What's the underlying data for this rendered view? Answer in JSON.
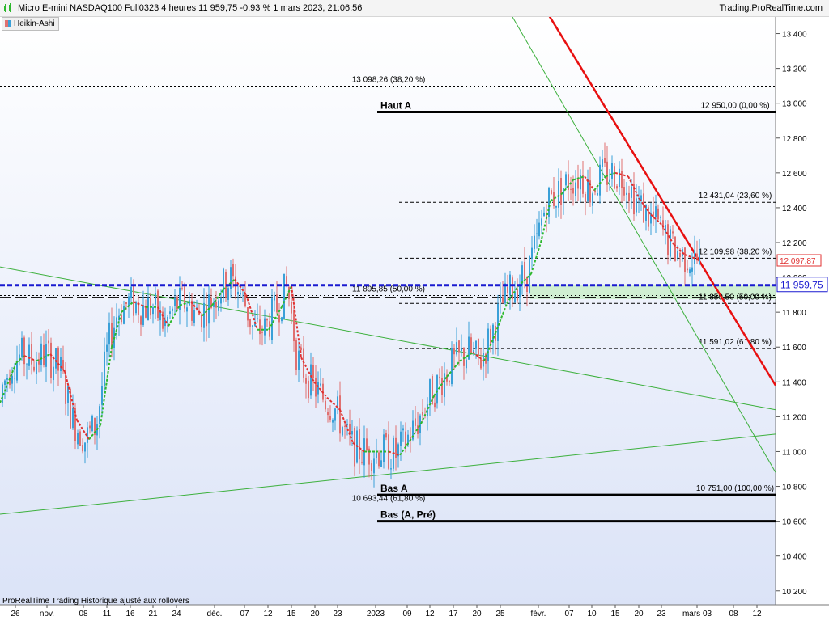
{
  "header": {
    "title": "Micro E-mini NASDAQ100 Full0323 4 heures 11 959,75 -0,93 % 1 mars 2023, 21:06:56",
    "brand": "Trading.ProRealTime.com"
  },
  "indicator": {
    "label": "Heikin-Ashi",
    "icon": "heikin-ashi-icon"
  },
  "footer": {
    "note": "ProRealTime Trading  Historique ajusté aux rollovers"
  },
  "colors": {
    "bull": "#3aa0d8",
    "bear": "#e07070",
    "ma_up": "#2db82d",
    "ma_down": "#e03030",
    "trend": "#3cb03c",
    "red_line": "#e81010",
    "blue_level": "#1a1ad0",
    "zone": "#c8eec8",
    "bg_top": "#ffffff",
    "bg_bottom": "#dbe3f7"
  },
  "chart_data": {
    "type": "candlestick",
    "ylim": [
      10120,
      13500
    ],
    "y_ticks": [
      10200,
      10400,
      10600,
      10800,
      11000,
      11200,
      11400,
      11600,
      11800,
      12000,
      12200,
      12400,
      12600,
      12800,
      13000,
      13200,
      13400
    ],
    "y_tick_labels": [
      "10 200",
      "10 400",
      "10 600",
      "10 800",
      "11 000",
      "11 200",
      "11 400",
      "11 600",
      "11 800",
      "12 000",
      "12 200",
      "12 400",
      "12 600",
      "12 800",
      "13 000",
      "13 200",
      "13 400"
    ],
    "x_labels": [
      {
        "label": "26",
        "x": 19
      },
      {
        "label": "nov.",
        "x": 58
      },
      {
        "label": "08",
        "x": 103
      },
      {
        "label": "11",
        "x": 132
      },
      {
        "label": "16",
        "x": 161
      },
      {
        "label": "21",
        "x": 189
      },
      {
        "label": "24",
        "x": 218
      },
      {
        "label": "déc.",
        "x": 265
      },
      {
        "label": "07",
        "x": 302
      },
      {
        "label": "12",
        "x": 331
      },
      {
        "label": "15",
        "x": 360
      },
      {
        "label": "20",
        "x": 389
      },
      {
        "label": "23",
        "x": 417
      },
      {
        "label": "2023",
        "x": 464
      },
      {
        "label": "09",
        "x": 503
      },
      {
        "label": "12",
        "x": 531
      },
      {
        "label": "17",
        "x": 560
      },
      {
        "label": "20",
        "x": 589
      },
      {
        "label": "25",
        "x": 618
      },
      {
        "label": "févr.",
        "x": 665
      },
      {
        "label": "07",
        "x": 703
      },
      {
        "label": "10",
        "x": 731
      },
      {
        "label": "15",
        "x": 760
      },
      {
        "label": "20",
        "x": 789
      },
      {
        "label": "23",
        "x": 817
      },
      {
        "label": "mars 03",
        "x": 861
      },
      {
        "label": "08",
        "x": 906
      },
      {
        "label": "12",
        "x": 935
      }
    ],
    "ma_points": [
      [
        0,
        11280
      ],
      [
        20,
        11510
      ],
      [
        30,
        11550
      ],
      [
        45,
        11520
      ],
      [
        62,
        11560
      ],
      [
        80,
        11460
      ],
      [
        95,
        11180
      ],
      [
        110,
        11070
      ],
      [
        124,
        11150
      ],
      [
        138,
        11600
      ],
      [
        150,
        11800
      ],
      [
        165,
        11860
      ],
      [
        180,
        11830
      ],
      [
        195,
        11830
      ],
      [
        208,
        11720
      ],
      [
        222,
        11840
      ],
      [
        236,
        11860
      ],
      [
        250,
        11780
      ],
      [
        262,
        11840
      ],
      [
        276,
        11930
      ],
      [
        290,
        11990
      ],
      [
        304,
        11900
      ],
      [
        318,
        11700
      ],
      [
        332,
        11700
      ],
      [
        348,
        11830
      ],
      [
        360,
        11950
      ],
      [
        372,
        11540
      ],
      [
        388,
        11400
      ],
      [
        404,
        11310
      ],
      [
        420,
        11240
      ],
      [
        436,
        11050
      ],
      [
        450,
        11000
      ],
      [
        464,
        11000
      ],
      [
        480,
        11000
      ],
      [
        494,
        10980
      ],
      [
        506,
        11060
      ],
      [
        520,
        11160
      ],
      [
        536,
        11320
      ],
      [
        552,
        11430
      ],
      [
        568,
        11520
      ],
      [
        584,
        11570
      ],
      [
        598,
        11520
      ],
      [
        612,
        11680
      ],
      [
        626,
        11850
      ],
      [
        640,
        11950
      ],
      [
        656,
        12020
      ],
      [
        668,
        12200
      ],
      [
        680,
        12440
      ],
      [
        694,
        12480
      ],
      [
        708,
        12560
      ],
      [
        722,
        12580
      ],
      [
        734,
        12500
      ],
      [
        748,
        12580
      ],
      [
        760,
        12600
      ],
      [
        776,
        12580
      ],
      [
        790,
        12450
      ],
      [
        804,
        12360
      ],
      [
        818,
        12300
      ],
      [
        832,
        12190
      ],
      [
        846,
        12130
      ],
      [
        864,
        12100
      ]
    ],
    "levels": [
      {
        "value": 13098.26,
        "label": "13 098,26 (38,20 %)",
        "style": "dotted",
        "from": 0,
        "to": 958,
        "label_x": 480
      },
      {
        "value": 12950.0,
        "label": "12 950,00 (0,00 %)",
        "style": "solid-thick",
        "from": 466,
        "to": 958,
        "label_x": 908,
        "tag": "Haut A"
      },
      {
        "value": 12431.04,
        "label": "12 431,04 (23,60 %)",
        "style": "dashed",
        "from": 493,
        "to": 958,
        "label_x": 908
      },
      {
        "value": 12109.98,
        "label": "12 109,98 (38,20 %)",
        "style": "dashed",
        "from": 493,
        "to": 958,
        "label_x": 908
      },
      {
        "value": 11895.85,
        "label": "11 895,85 (50,00 %)",
        "style": "dotted",
        "from": 0,
        "to": 958,
        "label_x": 480
      },
      {
        "value": 11850.5,
        "label": "11 850,50 (50,00 %)",
        "style": "dashed",
        "from": 493,
        "to": 958,
        "label_x": 908
      },
      {
        "value": 11591.02,
        "label": "11 591,02 (61,80 %)",
        "style": "dashed",
        "from": 493,
        "to": 958,
        "label_x": 908
      },
      {
        "value": 10751.0,
        "label": "10 751,00 (100,00 %)",
        "style": "solid-thick",
        "from": 466,
        "to": 958,
        "label_x": 908,
        "tag": "Bas A"
      },
      {
        "value": 10693.44,
        "label": "10 693,44 (61,80 %)",
        "style": "dotted",
        "from": 0,
        "to": 958,
        "label_x": 480
      },
      {
        "value": 10600.0,
        "label": "",
        "style": "solid-thick",
        "from": 466,
        "to": 958,
        "label_x": 908,
        "tag": "Bas (A, Pré)"
      }
    ],
    "blue_level": 11955,
    "current_price": {
      "value": 11959.75,
      "label": "11 959,75"
    },
    "last_price_tag": {
      "value": 12097.87,
      "label": "12 097,87"
    },
    "zone": {
      "from": 655,
      "to": 958,
      "top": 11955,
      "bottom": 11875
    },
    "trendlines": [
      {
        "x1": 0,
        "y1": 12060,
        "x2": 958,
        "y2": 11240,
        "color": "trend"
      },
      {
        "x1": 0,
        "y1": 10640,
        "x2": 958,
        "y2": 11100,
        "color": "trend"
      },
      {
        "x1": 630,
        "y1": 13520,
        "x2": 958,
        "y2": 10880,
        "color": "trend"
      },
      {
        "x1": 676,
        "y1": 13520,
        "x2": 958,
        "y2": 11380,
        "color": "red_line"
      }
    ],
    "candles_seed": 7
  }
}
